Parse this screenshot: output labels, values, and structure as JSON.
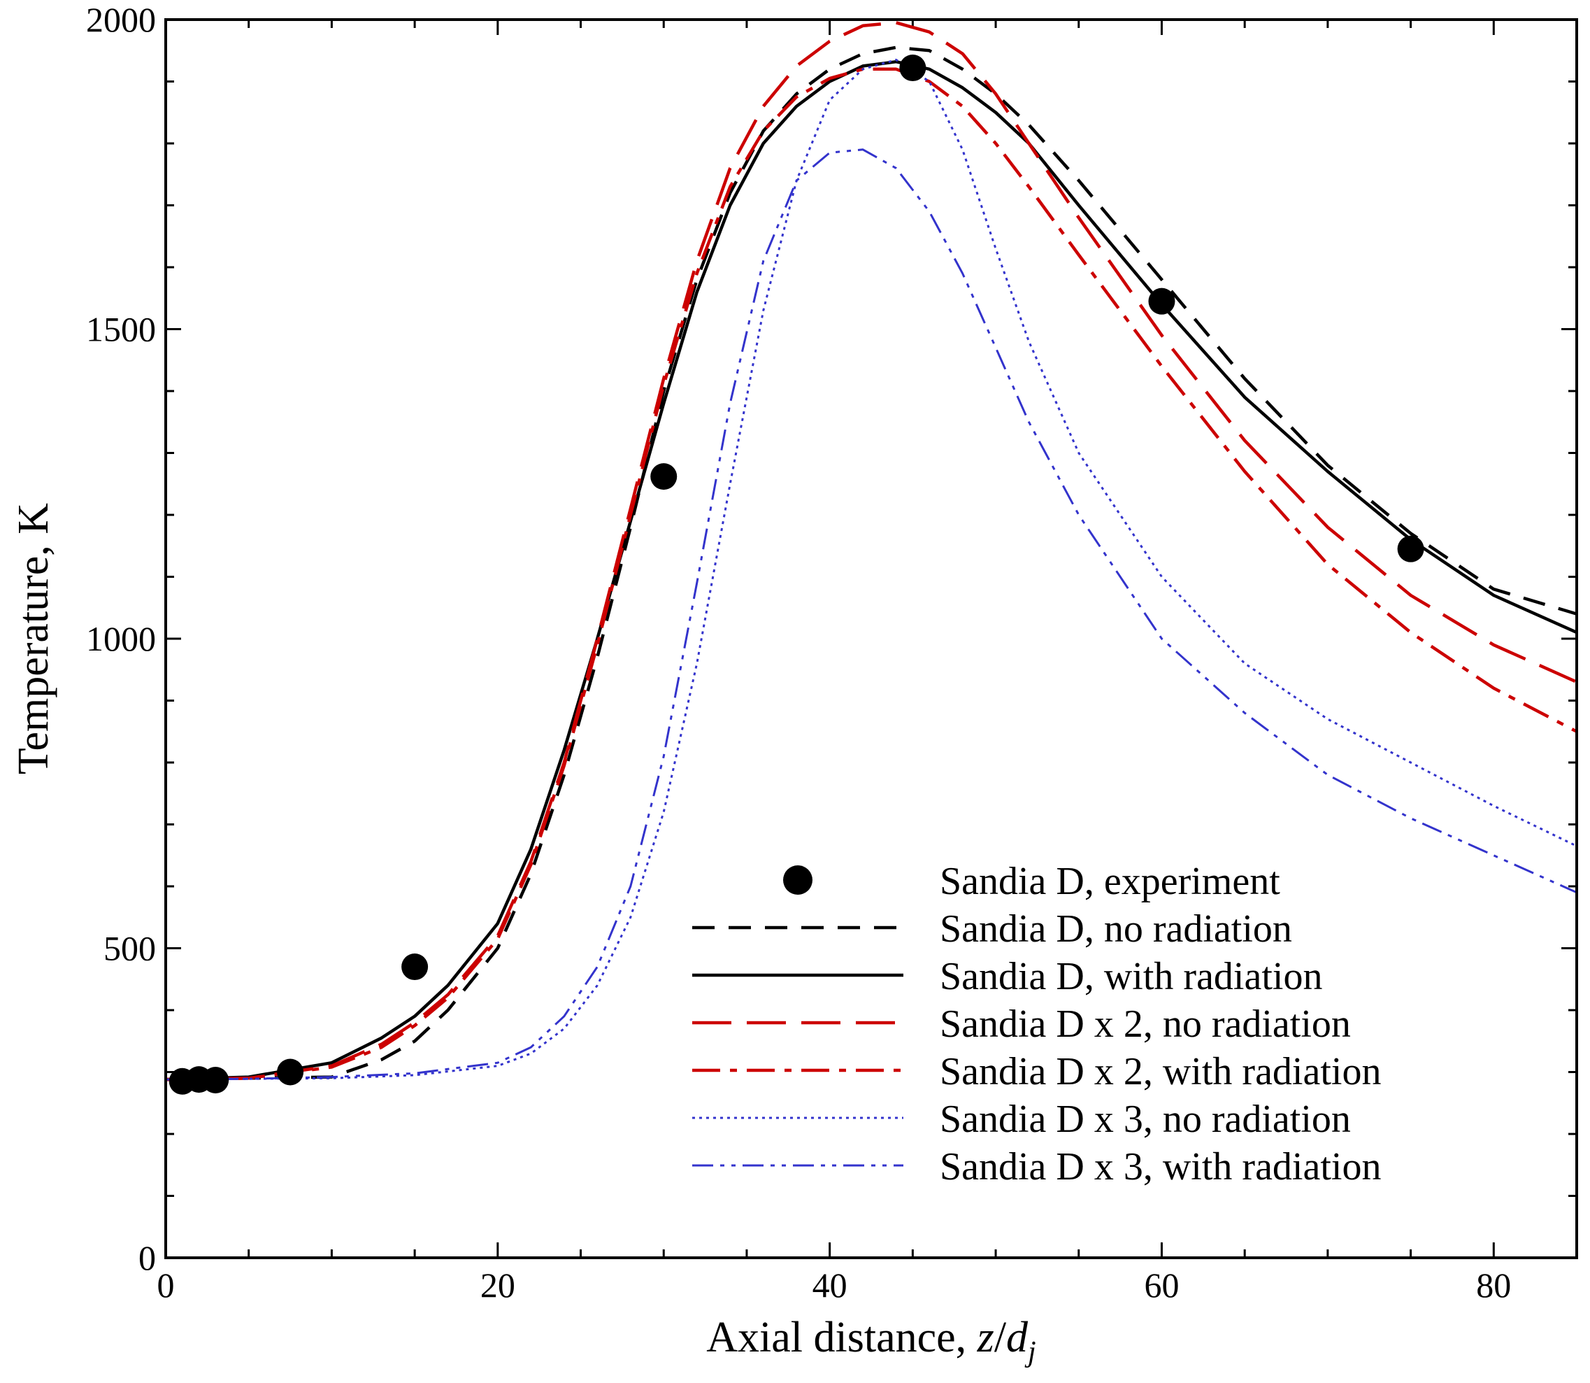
{
  "chart_data": {
    "type": "line",
    "xlabel_main": "Axial distance, ",
    "xlabel_z": "z",
    "xlabel_slash": "/",
    "xlabel_d": "d",
    "xlabel_sub": "j",
    "ylabel": "Temperature, K",
    "xlim": [
      0,
      85
    ],
    "ylim": [
      0,
      2000
    ],
    "x_ticks": [
      0,
      20,
      40,
      60,
      80
    ],
    "x_tick_labels": [
      "0",
      "20",
      "40",
      "60",
      "80"
    ],
    "y_ticks": [
      0,
      500,
      1000,
      1500,
      2000
    ],
    "y_tick_labels": [
      "0",
      "500",
      "1000",
      "1500",
      "2000"
    ],
    "x_minor_step": 5,
    "y_minor_step": 100,
    "legend_position": "bottom-right",
    "experiment": {
      "name": "Sandia D, experiment",
      "color": "#000000",
      "x": [
        1,
        2,
        3,
        7.5,
        15,
        30,
        45,
        60,
        75
      ],
      "y": [
        285,
        288,
        287,
        300,
        470,
        1262,
        1922,
        1545,
        1145
      ]
    },
    "series": [
      {
        "name": "Sandia D, no radiation",
        "color": "#000000",
        "style": "dashed",
        "x": [
          0,
          5,
          10,
          13,
          15,
          17,
          20,
          22,
          24,
          26,
          28,
          30,
          32,
          34,
          36,
          38,
          40,
          42,
          44,
          46,
          48,
          50,
          52,
          55,
          60,
          65,
          70,
          75,
          80,
          85
        ],
        "y": [
          288,
          290,
          292,
          320,
          350,
          400,
          500,
          620,
          780,
          970,
          1180,
          1400,
          1580,
          1720,
          1820,
          1880,
          1920,
          1945,
          1955,
          1950,
          1920,
          1880,
          1830,
          1740,
          1580,
          1420,
          1280,
          1170,
          1080,
          1040
        ]
      },
      {
        "name": "Sandia D, with radiation",
        "color": "#000000",
        "style": "solid",
        "x": [
          0,
          5,
          10,
          13,
          15,
          17,
          20,
          22,
          24,
          26,
          28,
          30,
          32,
          34,
          36,
          38,
          40,
          42,
          44,
          46,
          48,
          50,
          52,
          55,
          60,
          65,
          70,
          75,
          80,
          85
        ],
        "y": [
          288,
          292,
          315,
          355,
          390,
          440,
          540,
          660,
          820,
          1000,
          1190,
          1380,
          1560,
          1700,
          1800,
          1860,
          1900,
          1925,
          1932,
          1920,
          1890,
          1850,
          1800,
          1700,
          1540,
          1390,
          1270,
          1160,
          1070,
          1010
        ]
      },
      {
        "name": "Sandia D x 2, no radiation",
        "color": "#cc0000",
        "style": "longdash",
        "x": [
          0,
          5,
          10,
          13,
          15,
          17,
          20,
          22,
          24,
          26,
          28,
          30,
          32,
          34,
          36,
          38,
          40,
          42,
          44,
          46,
          48,
          50,
          52,
          55,
          60,
          65,
          70,
          75,
          80,
          85
        ],
        "y": [
          288,
          290,
          310,
          345,
          380,
          425,
          520,
          640,
          800,
          1000,
          1210,
          1420,
          1610,
          1760,
          1860,
          1925,
          1965,
          1990,
          1995,
          1980,
          1945,
          1880,
          1800,
          1680,
          1490,
          1320,
          1180,
          1070,
          990,
          930
        ]
      },
      {
        "name": "Sandia D x 2, with radiation",
        "color": "#cc0000",
        "style": "dashdot",
        "x": [
          0,
          5,
          10,
          13,
          15,
          17,
          20,
          22,
          24,
          26,
          28,
          30,
          32,
          34,
          36,
          38,
          40,
          42,
          44,
          46,
          48,
          50,
          52,
          55,
          60,
          65,
          70,
          75,
          80,
          85
        ],
        "y": [
          288,
          290,
          308,
          340,
          375,
          420,
          515,
          635,
          795,
          990,
          1200,
          1410,
          1590,
          1730,
          1820,
          1875,
          1905,
          1920,
          1920,
          1900,
          1860,
          1800,
          1730,
          1620,
          1440,
          1270,
          1120,
          1010,
          920,
          850
        ]
      },
      {
        "name": "Sandia D x 3, no radiation",
        "color": "#3333cc",
        "style": "dotted",
        "x": [
          0,
          5,
          10,
          15,
          20,
          22,
          24,
          26,
          28,
          30,
          32,
          34,
          36,
          38,
          40,
          42,
          44,
          46,
          48,
          50,
          52,
          55,
          60,
          65,
          70,
          75,
          80,
          85
        ],
        "y": [
          288,
          289,
          290,
          295,
          310,
          330,
          370,
          440,
          550,
          720,
          960,
          1250,
          1530,
          1740,
          1870,
          1920,
          1935,
          1900,
          1790,
          1630,
          1480,
          1300,
          1100,
          960,
          870,
          800,
          730,
          665
        ]
      },
      {
        "name": "Sandia D x 3, with radiation",
        "color": "#3333cc",
        "style": "dashdotdot",
        "x": [
          0,
          5,
          10,
          15,
          20,
          22,
          24,
          26,
          28,
          30,
          32,
          34,
          36,
          38,
          40,
          42,
          44,
          46,
          48,
          50,
          52,
          55,
          60,
          65,
          70,
          75,
          80,
          85
        ],
        "y": [
          288,
          289,
          292,
          298,
          315,
          340,
          390,
          470,
          600,
          810,
          1090,
          1380,
          1610,
          1740,
          1785,
          1790,
          1760,
          1690,
          1590,
          1470,
          1350,
          1200,
          1000,
          880,
          780,
          710,
          650,
          590
        ]
      }
    ]
  }
}
